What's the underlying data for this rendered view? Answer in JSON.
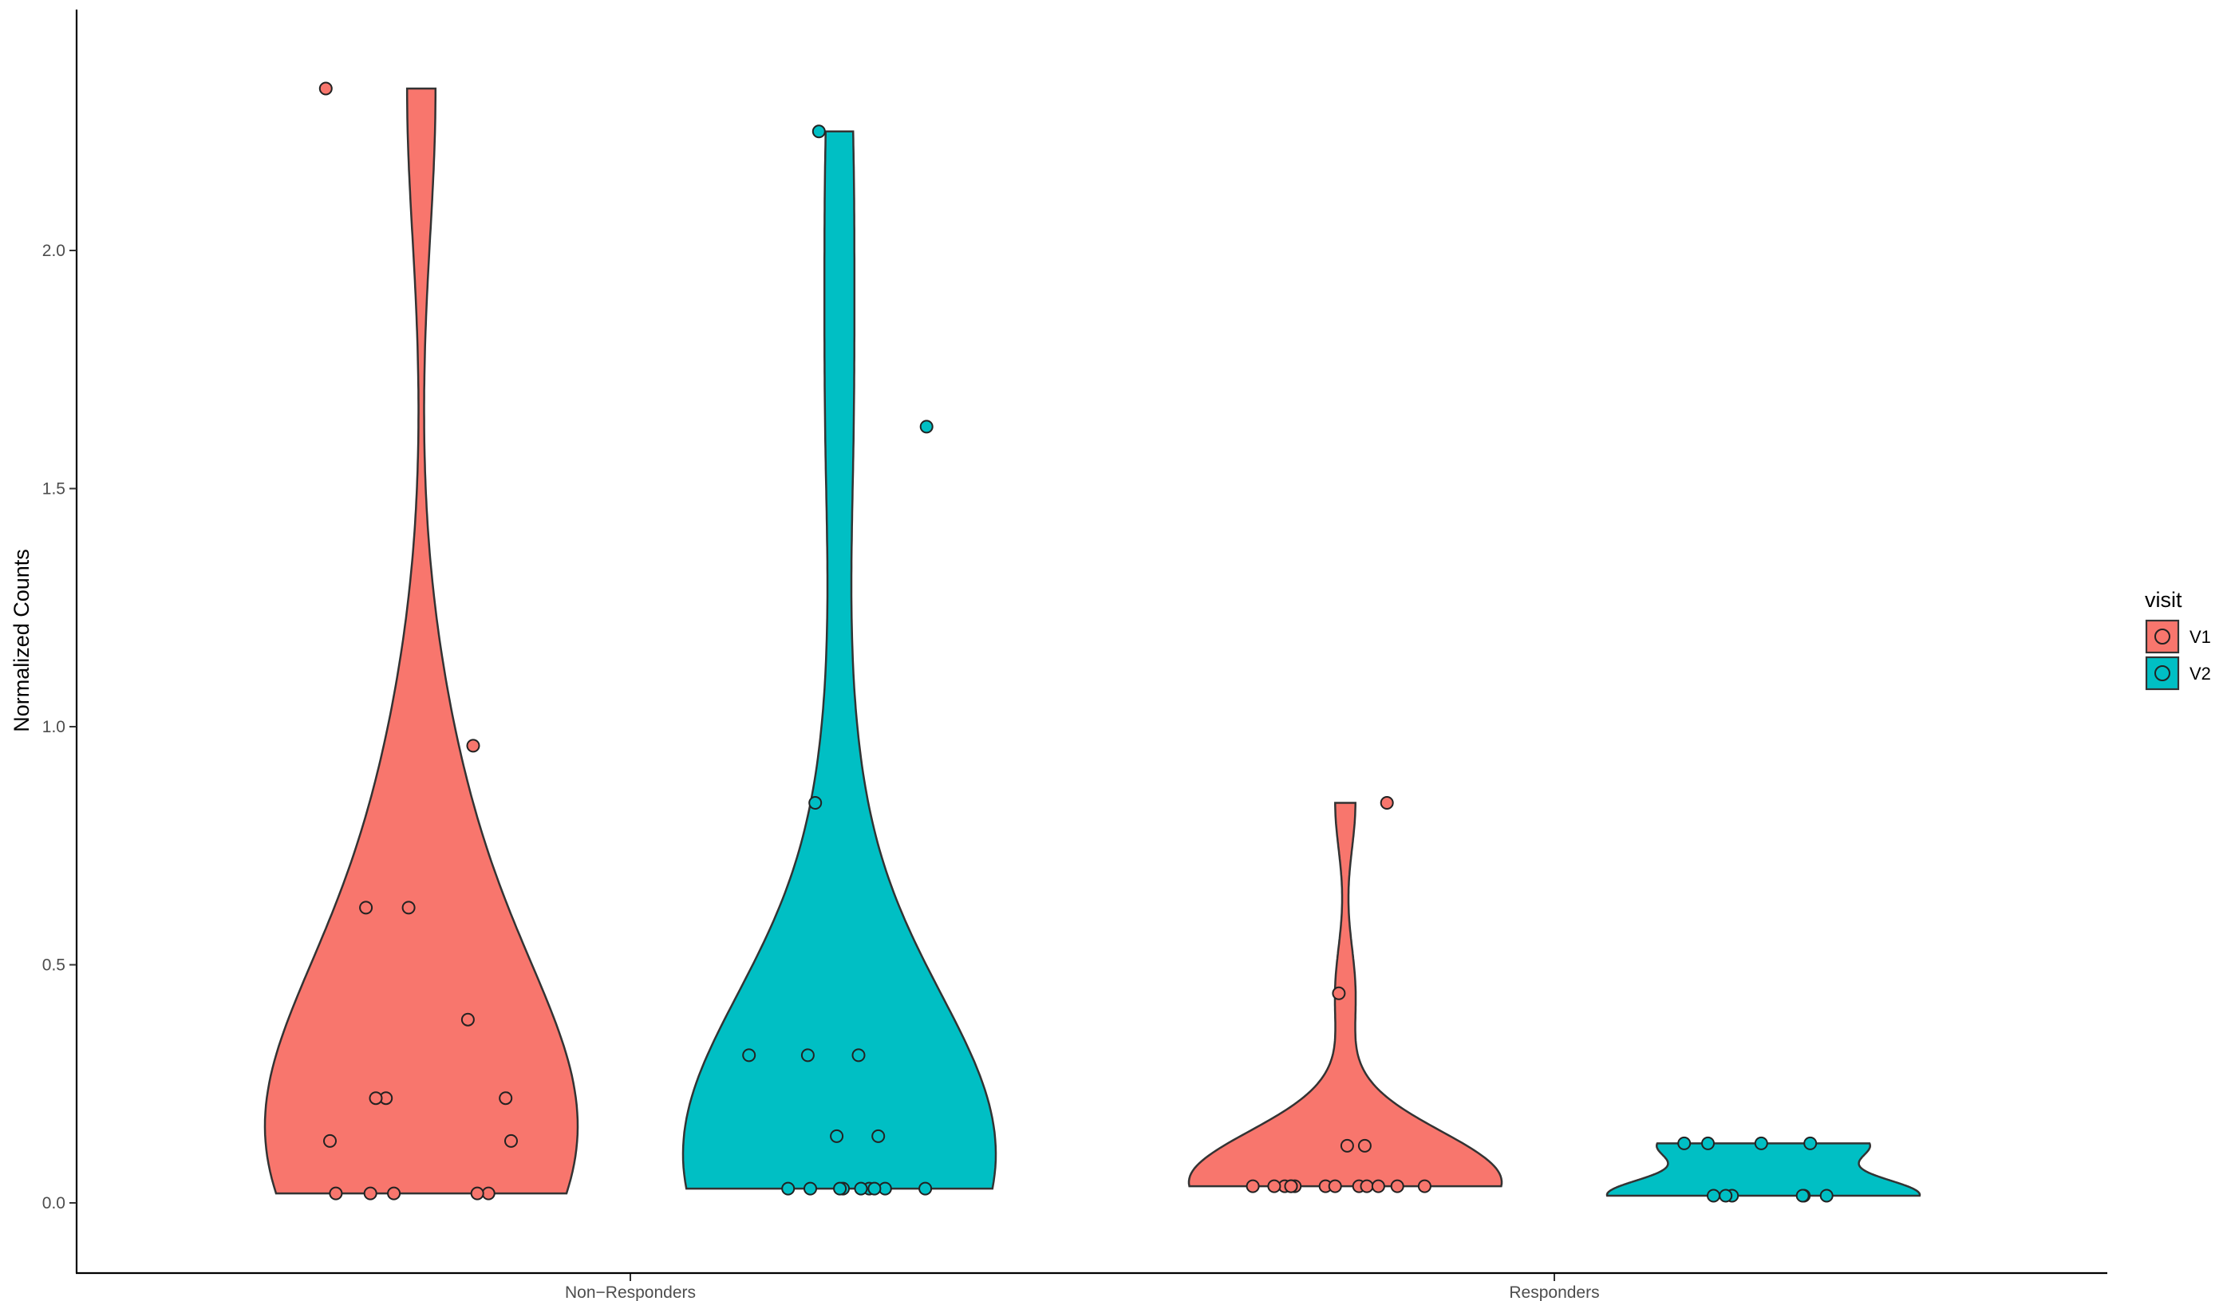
{
  "chart_data": {
    "type": "violin",
    "title": "",
    "xlabel": "",
    "ylabel": "Normalized Counts",
    "ylim": [
      -0.14,
      2.5
    ],
    "yticks": [
      0.0,
      0.5,
      1.0,
      1.5,
      2.0
    ],
    "ytick_labels": [
      "0.0",
      "0.5",
      "1.0",
      "1.5",
      "2.0"
    ],
    "categories": [
      "Non−Responders",
      "Responders"
    ],
    "legend": {
      "title": "visit",
      "position": "right",
      "entries": [
        {
          "label": "V1",
          "color": "#F8766D"
        },
        {
          "label": "V2",
          "color": "#00BFC4"
        }
      ]
    },
    "series": [
      {
        "name": "V1",
        "color": "#F8766D",
        "groups": [
          {
            "category": "Non−Responders",
            "points": [
              2.34,
              0.96,
              0.62,
              0.62,
              0.385,
              0.22,
              0.22,
              0.22,
              0.13,
              0.13,
              0.02,
              0.02,
              0.02,
              0.02,
              0.02
            ]
          },
          {
            "category": "Responders",
            "points": [
              0.84,
              0.44,
              0.12,
              0.12,
              0.035,
              0.035,
              0.035,
              0.035,
              0.035,
              0.035,
              0.035,
              0.035,
              0.035,
              0.035,
              0.035,
              0.035,
              0.035,
              0.035
            ]
          }
        ]
      },
      {
        "name": "V2",
        "color": "#00BFC4",
        "groups": [
          {
            "category": "Non−Responders",
            "points": [
              2.25,
              1.63,
              0.84,
              0.31,
              0.31,
              0.31,
              0.14,
              0.14,
              0.03,
              0.03,
              0.03,
              0.03,
              0.03,
              0.03,
              0.03,
              0.03,
              0.03
            ]
          },
          {
            "category": "Responders",
            "points": [
              0.125,
              0.125,
              0.125,
              0.125,
              0.015,
              0.015,
              0.015,
              0.015,
              0.015,
              0.015
            ]
          }
        ]
      }
    ]
  }
}
